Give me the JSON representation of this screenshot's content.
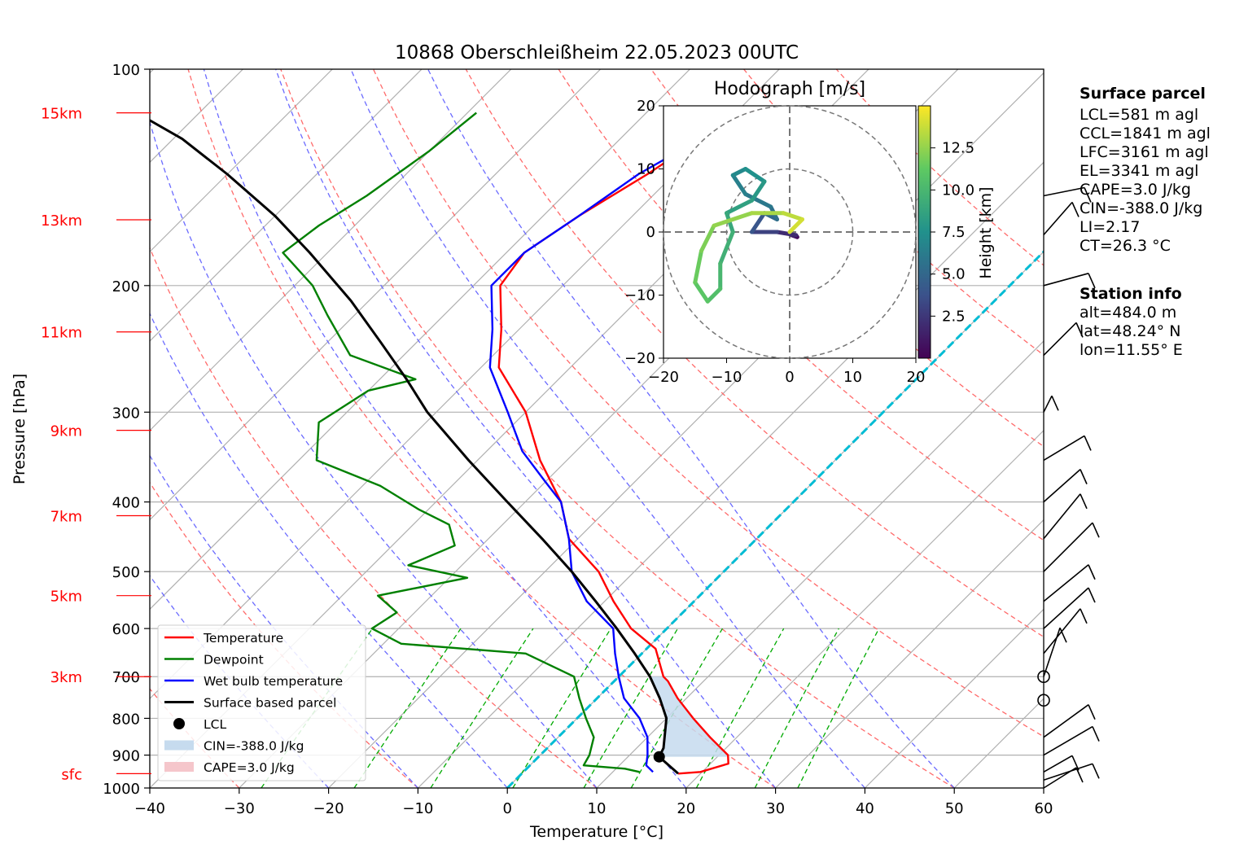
{
  "chart_data": {
    "type": "line",
    "title": "10868 Oberschleißheim 22.05.2023 00UTC",
    "xlabel": "Temperature [°C]",
    "ylabel": "Pressure [hPa]",
    "xlim": [
      -40,
      60
    ],
    "ylim": [
      1000,
      100
    ],
    "y_scale": "log",
    "skew": true,
    "grid": true,
    "x_ticks": [
      "−40",
      "−30",
      "−20",
      "−10",
      "0",
      "10",
      "20",
      "30",
      "40",
      "50",
      "60"
    ],
    "y_ticks": [
      "100",
      "200",
      "300",
      "400",
      "500",
      "600",
      "700",
      "800",
      "900",
      "1000"
    ],
    "height_labels": [
      {
        "text": "sfc",
        "p": 955
      },
      {
        "text": "3km",
        "p": 700
      },
      {
        "text": "5km",
        "p": 540
      },
      {
        "text": "7km",
        "p": 418
      },
      {
        "text": "9km",
        "p": 318
      },
      {
        "text": "11km",
        "p": 232
      },
      {
        "text": "13km",
        "p": 162
      },
      {
        "text": "15km",
        "p": 115
      }
    ],
    "series": [
      {
        "name": "Temperature",
        "color": "#ff0000",
        "points": [
          [
            17.5,
            955
          ],
          [
            19.8,
            950
          ],
          [
            22,
            925
          ],
          [
            21,
            900
          ],
          [
            17,
            850
          ],
          [
            13,
            800
          ],
          [
            9,
            750
          ],
          [
            6,
            710
          ],
          [
            5,
            700
          ],
          [
            1,
            640
          ],
          [
            -4,
            600
          ],
          [
            -9,
            550
          ],
          [
            -14,
            500
          ],
          [
            -21,
            450
          ],
          [
            -26,
            400
          ],
          [
            -33,
            350
          ],
          [
            -40,
            300
          ],
          [
            -48,
            260
          ],
          [
            -52,
            230
          ],
          [
            -57,
            200
          ],
          [
            -58,
            180
          ],
          [
            -56,
            160
          ],
          [
            -53,
            140
          ],
          [
            -51,
            125
          ],
          [
            -50,
            115
          ]
        ]
      },
      {
        "name": "Dewpoint",
        "color": "#008000",
        "points": [
          [
            13,
            950
          ],
          [
            11,
            940
          ],
          [
            6,
            930
          ],
          [
            5.5,
            900
          ],
          [
            4,
            850
          ],
          [
            1,
            800
          ],
          [
            -2,
            750
          ],
          [
            -5,
            700
          ],
          [
            -13,
            650
          ],
          [
            -28,
            630
          ],
          [
            -33,
            600
          ],
          [
            -32,
            570
          ],
          [
            -36,
            540
          ],
          [
            -28,
            510
          ],
          [
            -36,
            490
          ],
          [
            -33,
            460
          ],
          [
            -36,
            430
          ],
          [
            -41,
            410
          ],
          [
            -48,
            380
          ],
          [
            -58,
            350
          ],
          [
            -62,
            310
          ],
          [
            -60,
            280
          ],
          [
            -56,
            270
          ],
          [
            -66,
            250
          ],
          [
            -73,
            220
          ],
          [
            -78,
            200
          ],
          [
            -85,
            180
          ],
          [
            -84,
            165
          ],
          [
            -82,
            150
          ],
          [
            -80,
            130
          ],
          [
            -79,
            115
          ]
        ]
      },
      {
        "name": "Wet bulb temperature",
        "color": "#0000ff",
        "points": [
          [
            14.5,
            950
          ],
          [
            13,
            930
          ],
          [
            12,
            900
          ],
          [
            10,
            850
          ],
          [
            7,
            800
          ],
          [
            3,
            750
          ],
          [
            0,
            700
          ],
          [
            -3,
            650
          ],
          [
            -6,
            600
          ],
          [
            -12,
            550
          ],
          [
            -17,
            500
          ],
          [
            -21,
            450
          ],
          [
            -26,
            400
          ],
          [
            -30,
            375
          ],
          [
            -36,
            340
          ],
          [
            -42,
            300
          ],
          [
            -49,
            260
          ],
          [
            -53,
            230
          ],
          [
            -58,
            200
          ],
          [
            -58,
            180
          ],
          [
            -56,
            160
          ],
          [
            -54,
            140
          ],
          [
            -51,
            125
          ],
          [
            -50,
            115
          ]
        ]
      },
      {
        "name": "Surface based parcel",
        "color": "#000000",
        "points": [
          [
            17.5,
            955
          ],
          [
            13.5,
            905
          ],
          [
            13,
            880
          ],
          [
            10,
            800
          ],
          [
            7,
            750
          ],
          [
            3.5,
            700
          ],
          [
            -0.8,
            650
          ],
          [
            -5.6,
            600
          ],
          [
            -11,
            550
          ],
          [
            -17,
            500
          ],
          [
            -24,
            450
          ],
          [
            -32,
            400
          ],
          [
            -41,
            350
          ],
          [
            -51,
            300
          ],
          [
            -57,
            270
          ],
          [
            -64,
            240
          ],
          [
            -72,
            210
          ],
          [
            -82,
            180
          ],
          [
            -90,
            160
          ],
          [
            -100,
            140
          ],
          [
            -109,
            125
          ],
          [
            -117,
            115
          ]
        ]
      }
    ],
    "lcl": {
      "t": 13.5,
      "p": 905,
      "label": "LCL"
    },
    "cin_area_label": "CIN=-388.0 J/kg",
    "cape_area_label": "CAPE=3.0 J/kg",
    "legend": "lower-left",
    "hodograph": {
      "title": "Hodograph [m/s]",
      "xlim": [
        -20,
        20
      ],
      "ylim": [
        -20,
        20
      ],
      "ticks": [
        "−20",
        "−10",
        "0",
        "10",
        "20"
      ],
      "colorbar_label": "Height [km]",
      "colorbar_ticks": [
        "2.5",
        "5.0",
        "7.5",
        "10.0",
        "12.5"
      ],
      "colormap": "viridis",
      "points": [
        [
          1,
          0.3,
          -0.5
        ],
        [
          0.5,
          1.2,
          -0.8
        ],
        [
          2,
          1,
          -0.5
        ],
        [
          3,
          -2,
          0
        ],
        [
          4,
          -6,
          0
        ],
        [
          5,
          -4,
          3
        ],
        [
          5.5,
          -2,
          2
        ],
        [
          6,
          -3,
          4
        ],
        [
          6.5,
          -7,
          6
        ],
        [
          7,
          -9,
          9
        ],
        [
          7.5,
          -7,
          10
        ],
        [
          8,
          -4,
          8
        ],
        [
          8.5,
          -6,
          5
        ],
        [
          9,
          -10,
          3
        ],
        [
          9.5,
          -9,
          0
        ],
        [
          10,
          -11,
          -5
        ],
        [
          10.5,
          -11,
          -9
        ],
        [
          11,
          -13,
          -11
        ],
        [
          11.5,
          -15,
          -8
        ],
        [
          12,
          -14,
          -3
        ],
        [
          12.5,
          -12,
          1
        ],
        [
          13,
          -6,
          3
        ],
        [
          13.5,
          -1,
          3
        ],
        [
          14,
          2,
          2
        ],
        [
          14.3,
          0,
          0
        ]
      ]
    }
  },
  "info": {
    "surface_header": "Surface parcel",
    "surface_lines": [
      "LCL=581 m agl",
      "CCL=1841 m agl",
      "LFC=3161 m agl",
      "EL=3341 m agl",
      "CAPE=3.0 J/kg",
      "CIN=-388.0 J/kg",
      "LI=2.17",
      "CT=26.3 °C"
    ],
    "station_header": "Station info",
    "station_lines": [
      "alt=484.0 m",
      "lat=48.24° N",
      "lon=11.55° E"
    ]
  },
  "colors": {
    "temperature": "#ff0000",
    "dewpoint": "#008000",
    "wetbulb": "#0000ff",
    "parcel": "#000000",
    "cin_fill": "#c6dbee",
    "cape_fill": "#f5c6cb",
    "height_label": "#ff0000",
    "mixing_ratio": "#00aa00",
    "zero_isotherm": "#00bcd4"
  }
}
